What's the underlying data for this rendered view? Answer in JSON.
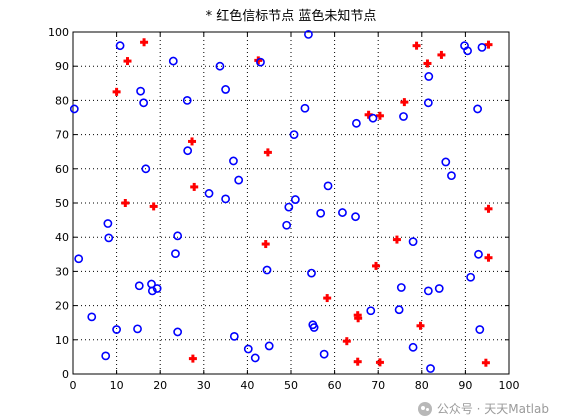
{
  "chart_data": {
    "type": "scatter",
    "title": "* 红色信标节点 蓝色未知节点",
    "xlabel": "",
    "ylabel": "",
    "xlim": [
      0,
      100
    ],
    "ylim": [
      0,
      100
    ],
    "xticks": [
      0,
      10,
      20,
      30,
      40,
      50,
      60,
      70,
      80,
      90,
      100
    ],
    "yticks": [
      0,
      10,
      20,
      30,
      40,
      50,
      60,
      70,
      80,
      90,
      100
    ],
    "grid": true,
    "series": [
      {
        "marker": "plus",
        "color": "#ff0000",
        "points": [
          [
            10,
            82.5
          ],
          [
            12.5,
            91.5
          ],
          [
            16.3,
            97
          ],
          [
            12,
            50
          ],
          [
            18.5,
            49
          ],
          [
            27.3,
            68
          ],
          [
            27.8,
            54.7
          ],
          [
            27.5,
            4.5
          ],
          [
            42.5,
            91.7
          ],
          [
            44.2,
            38
          ],
          [
            44.7,
            64.8
          ],
          [
            58.3,
            22.2
          ],
          [
            62.8,
            9.6
          ],
          [
            65.3,
            17.2
          ],
          [
            65.4,
            16.3
          ],
          [
            65.3,
            3.6
          ],
          [
            69.5,
            31.6
          ],
          [
            70.4,
            3.4
          ],
          [
            67.8,
            75.8
          ],
          [
            70.4,
            75.5
          ],
          [
            74.3,
            39.3
          ],
          [
            76,
            79.5
          ],
          [
            78.8,
            96
          ],
          [
            79.7,
            14.1
          ],
          [
            81.3,
            90.8
          ],
          [
            84.5,
            93.3
          ],
          [
            95.3,
            96.3
          ],
          [
            95.3,
            48.3
          ],
          [
            95.3,
            34
          ],
          [
            94.7,
            3.3
          ]
        ]
      },
      {
        "marker": "circle",
        "color": "#0000ff",
        "points": [
          [
            0.3,
            77.5
          ],
          [
            1.3,
            33.7
          ],
          [
            4.3,
            16.7
          ],
          [
            7.5,
            5.3
          ],
          [
            8,
            44
          ],
          [
            8.2,
            39.8
          ],
          [
            10,
            13
          ],
          [
            10.8,
            96
          ],
          [
            14.8,
            13.2
          ],
          [
            15.2,
            25.8
          ],
          [
            15.5,
            82.7
          ],
          [
            16.2,
            79.3
          ],
          [
            16.7,
            60
          ],
          [
            18,
            26.3
          ],
          [
            18.2,
            24.3
          ],
          [
            19.3,
            25
          ],
          [
            23,
            91.5
          ],
          [
            23.5,
            35.2
          ],
          [
            24,
            40.4
          ],
          [
            24,
            12.3
          ],
          [
            26.2,
            80
          ],
          [
            26.3,
            65.3
          ],
          [
            31.2,
            52.8
          ],
          [
            33.7,
            90
          ],
          [
            35,
            83.2
          ],
          [
            35,
            51.2
          ],
          [
            36.8,
            62.3
          ],
          [
            37,
            11
          ],
          [
            38,
            56.7
          ],
          [
            40.2,
            7.3
          ],
          [
            41.8,
            4.7
          ],
          [
            43,
            91.2
          ],
          [
            44.5,
            30.4
          ],
          [
            45,
            8.2
          ],
          [
            49,
            43.5
          ],
          [
            49.5,
            48.8
          ],
          [
            50.7,
            70
          ],
          [
            51,
            51
          ],
          [
            53.2,
            77.7
          ],
          [
            54,
            99.3
          ],
          [
            54.7,
            29.5
          ],
          [
            55,
            14.4
          ],
          [
            55.3,
            13.6
          ],
          [
            56.8,
            47
          ],
          [
            57.6,
            5.8
          ],
          [
            58.5,
            55
          ],
          [
            61.8,
            47.2
          ],
          [
            64.8,
            46
          ],
          [
            65,
            73.3
          ],
          [
            68.3,
            18.5
          ],
          [
            68.8,
            74.8
          ],
          [
            74.8,
            18.8
          ],
          [
            75.3,
            25.3
          ],
          [
            75.8,
            75.3
          ],
          [
            78,
            7.8
          ],
          [
            78,
            38.7
          ],
          [
            81.5,
            24.3
          ],
          [
            81.5,
            79.3
          ],
          [
            81.6,
            87
          ],
          [
            82,
            1.6
          ],
          [
            84,
            25
          ],
          [
            85.5,
            62
          ],
          [
            86.8,
            58
          ],
          [
            89.8,
            96
          ],
          [
            90.5,
            94.5
          ],
          [
            91.2,
            28.3
          ],
          [
            92.8,
            77.5
          ],
          [
            93,
            35
          ],
          [
            93.3,
            13
          ],
          [
            93.8,
            95.5
          ]
        ]
      }
    ]
  },
  "watermark": {
    "text": "公众号 · 天天Matlab",
    "icon": "wechat-icon"
  }
}
